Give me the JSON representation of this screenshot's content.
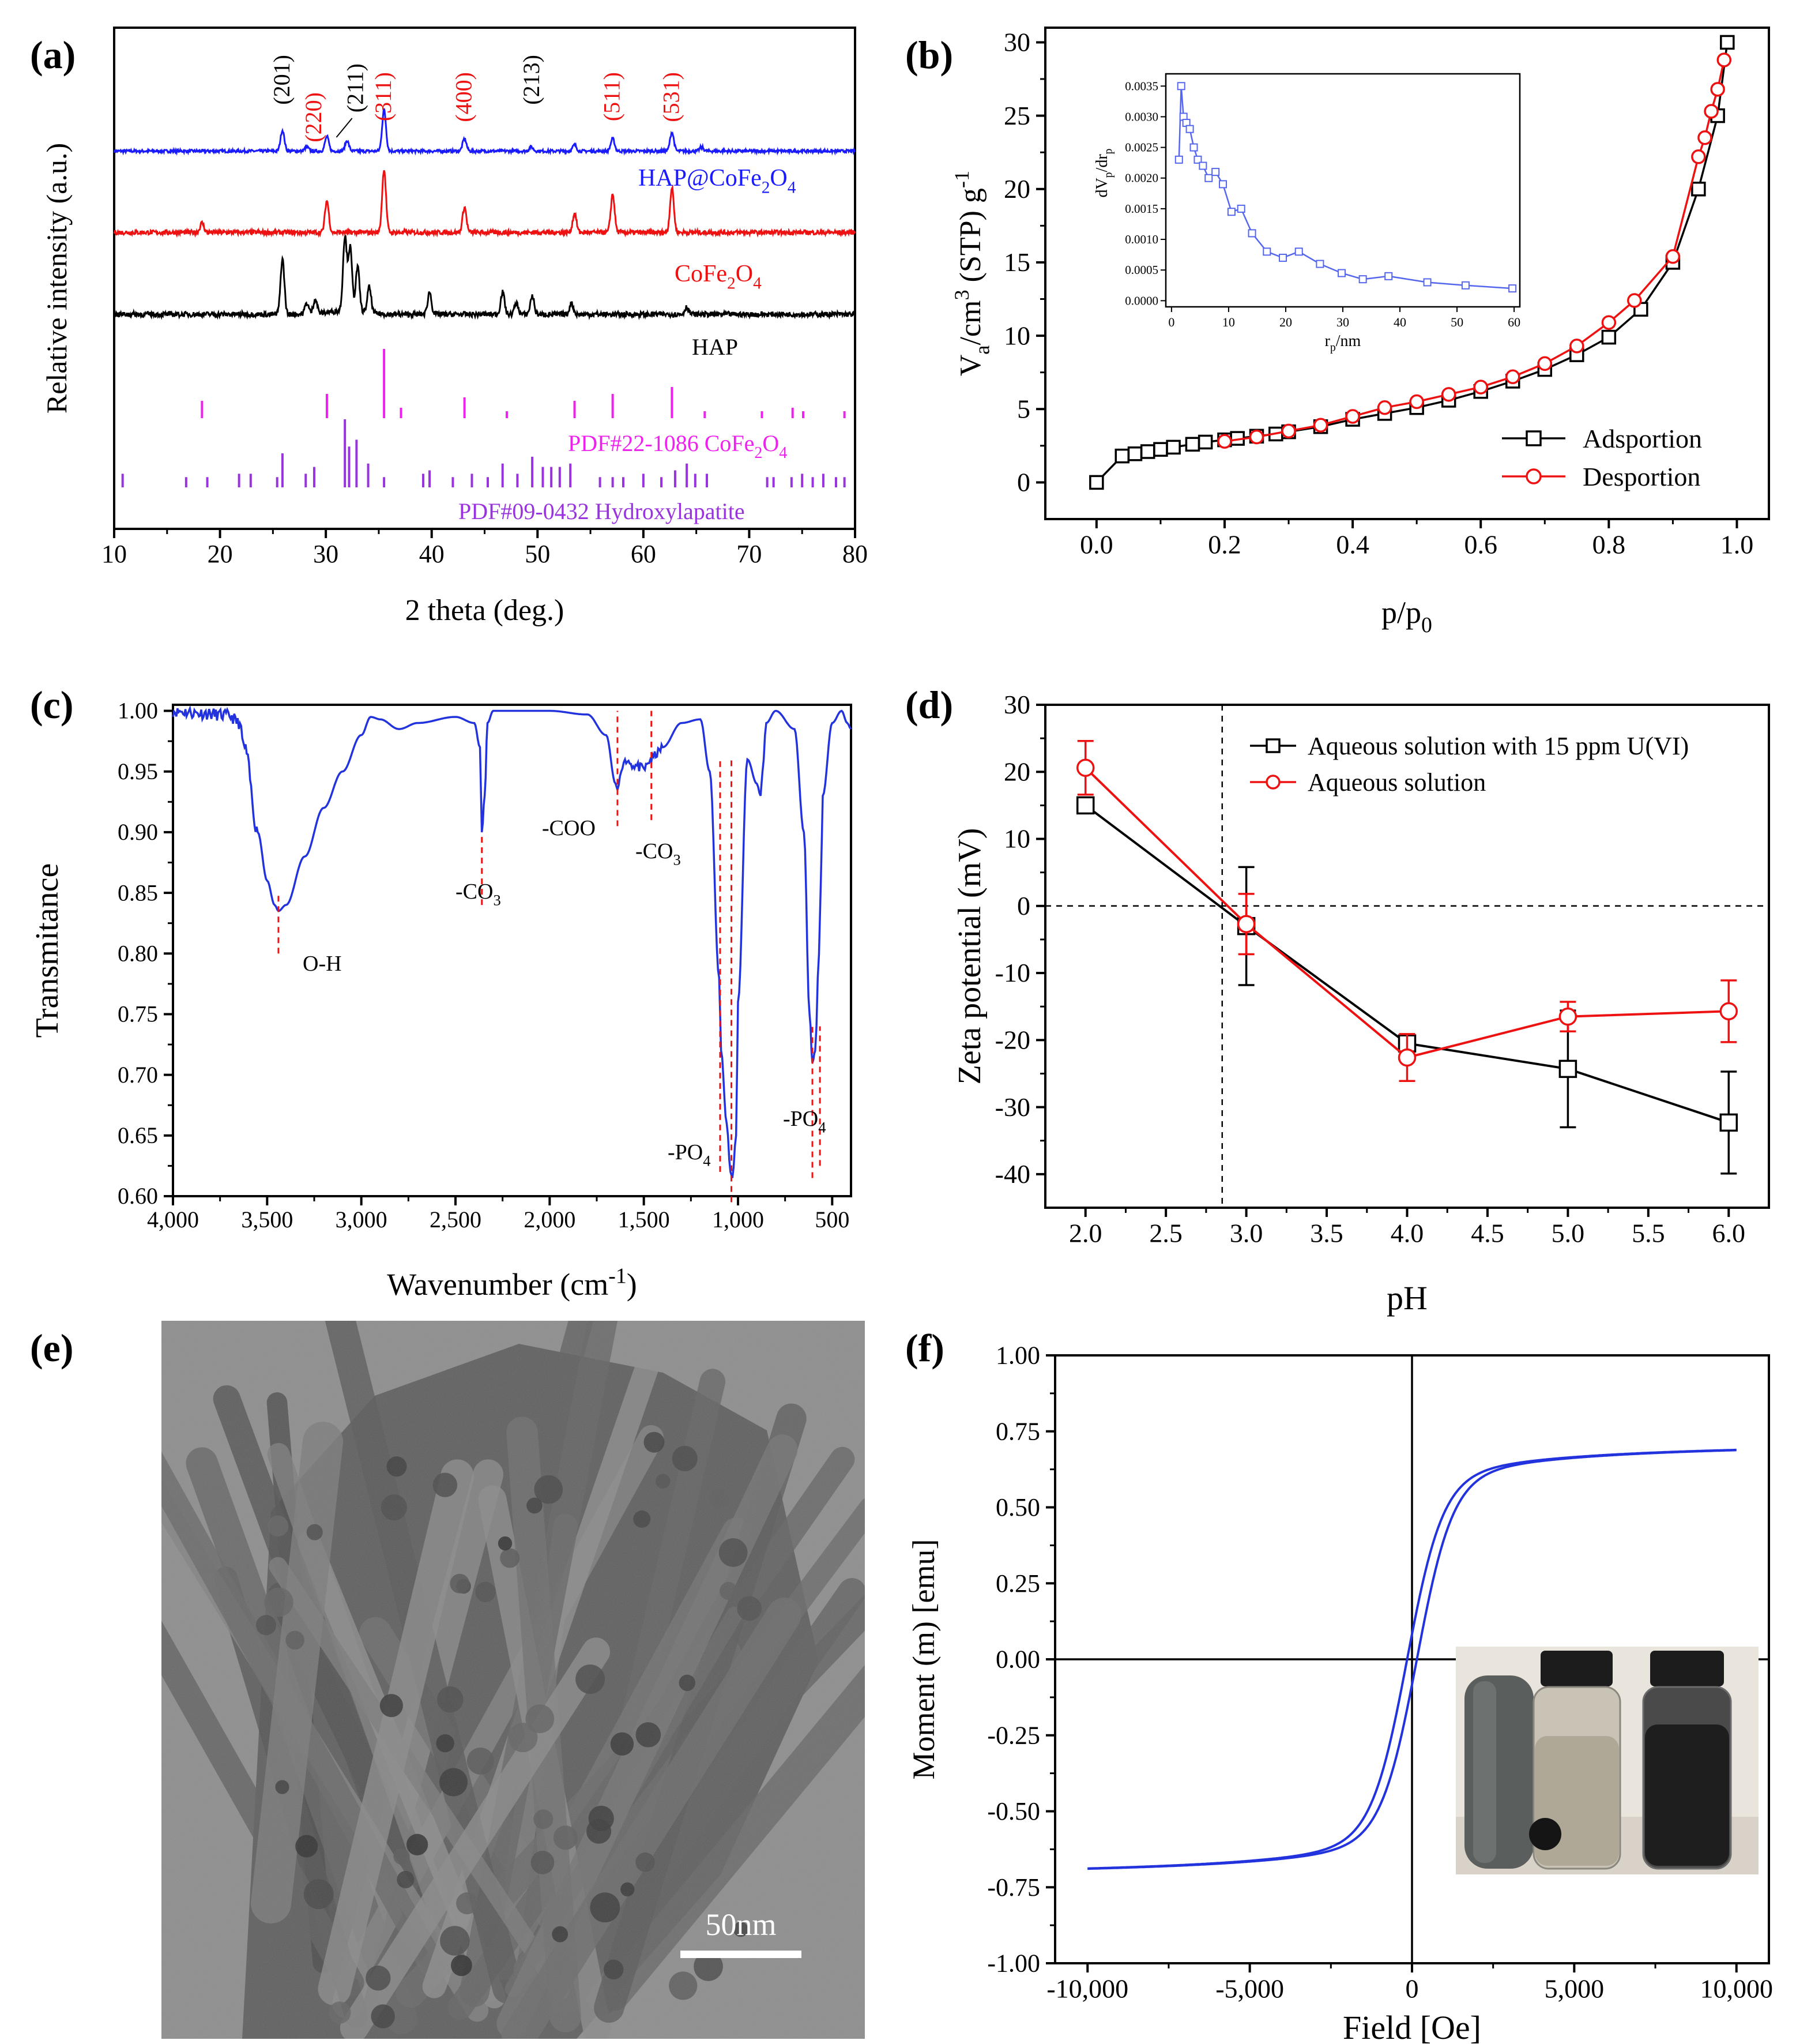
{
  "chart_data": [
    {
      "panel": "(a)",
      "type": "line",
      "xlabel": "2 theta (deg.)",
      "ylabel": "Relative intensity (a.u.)",
      "xlim": [
        10,
        80
      ],
      "xticks": [
        10,
        20,
        30,
        40,
        50,
        60,
        70,
        80
      ],
      "series": [
        {
          "name": "HAP@CoFe2O4",
          "color": "#1a1aff",
          "peaks": [
            [
              25.9,
              0.5
            ],
            [
              28.2,
              0.1
            ],
            [
              30.1,
              0.35
            ],
            [
              32.0,
              0.25
            ],
            [
              35.5,
              1.0
            ],
            [
              43.1,
              0.3
            ],
            [
              49.4,
              0.1
            ],
            [
              53.5,
              0.15
            ],
            [
              57.1,
              0.3
            ],
            [
              62.7,
              0.45
            ],
            [
              65.5,
              0.1
            ]
          ]
        },
        {
          "name": "CoFe2O4",
          "color": "#ee1111",
          "peaks": [
            [
              18.3,
              0.15
            ],
            [
              30.1,
              0.5
            ],
            [
              35.5,
              1.0
            ],
            [
              43.1,
              0.4
            ],
            [
              53.5,
              0.3
            ],
            [
              57.1,
              0.6
            ],
            [
              62.7,
              0.7
            ]
          ]
        },
        {
          "name": "HAP",
          "color": "#000000",
          "peaks": [
            [
              25.9,
              0.75
            ],
            [
              28.2,
              0.15
            ],
            [
              29.0,
              0.2
            ],
            [
              31.8,
              1.0
            ],
            [
              32.3,
              0.85
            ],
            [
              33.0,
              0.6
            ],
            [
              34.1,
              0.35
            ],
            [
              39.8,
              0.3
            ],
            [
              46.7,
              0.3
            ],
            [
              48.0,
              0.15
            ],
            [
              49.5,
              0.25
            ],
            [
              53.2,
              0.15
            ],
            [
              64.1,
              0.1
            ]
          ]
        }
      ],
      "reference_patterns": [
        {
          "name": "PDF#22-1086 CoFe2O4",
          "color": "#ee22ee",
          "sticks": [
            [
              18.3,
              0.25
            ],
            [
              30.1,
              0.35
            ],
            [
              35.5,
              1.0
            ],
            [
              37.1,
              0.15
            ],
            [
              43.1,
              0.3
            ],
            [
              47.1,
              0.1
            ],
            [
              53.5,
              0.25
            ],
            [
              57.1,
              0.35
            ],
            [
              62.7,
              0.45
            ],
            [
              65.8,
              0.1
            ],
            [
              71.2,
              0.1
            ],
            [
              74.1,
              0.15
            ],
            [
              75.1,
              0.1
            ],
            [
              79.0,
              0.1
            ]
          ]
        },
        {
          "name": "PDF#09-0432 Hydroxylapatite",
          "color": "#9933dd",
          "sticks": [
            [
              10.8,
              0.2
            ],
            [
              16.8,
              0.15
            ],
            [
              18.8,
              0.15
            ],
            [
              21.8,
              0.2
            ],
            [
              22.9,
              0.2
            ],
            [
              25.4,
              0.15
            ],
            [
              25.9,
              0.5
            ],
            [
              28.1,
              0.2
            ],
            [
              28.9,
              0.3
            ],
            [
              31.8,
              1.0
            ],
            [
              32.2,
              0.6
            ],
            [
              32.9,
              0.7
            ],
            [
              34.0,
              0.35
            ],
            [
              35.5,
              0.15
            ],
            [
              39.2,
              0.2
            ],
            [
              39.8,
              0.25
            ],
            [
              42.0,
              0.15
            ],
            [
              43.8,
              0.2
            ],
            [
              45.3,
              0.15
            ],
            [
              46.7,
              0.35
            ],
            [
              48.1,
              0.2
            ],
            [
              49.5,
              0.45
            ],
            [
              50.5,
              0.3
            ],
            [
              51.3,
              0.3
            ],
            [
              52.1,
              0.3
            ],
            [
              53.1,
              0.35
            ],
            [
              55.9,
              0.15
            ],
            [
              57.1,
              0.15
            ],
            [
              58.1,
              0.15
            ],
            [
              60.0,
              0.2
            ],
            [
              61.7,
              0.15
            ],
            [
              63.0,
              0.25
            ],
            [
              64.1,
              0.35
            ],
            [
              64.9,
              0.2
            ],
            [
              66.0,
              0.2
            ],
            [
              71.7,
              0.15
            ],
            [
              72.3,
              0.15
            ],
            [
              74.0,
              0.15
            ],
            [
              75.0,
              0.2
            ],
            [
              76.0,
              0.15
            ],
            [
              77.0,
              0.2
            ],
            [
              78.2,
              0.15
            ],
            [
              79.0,
              0.15
            ]
          ]
        }
      ],
      "peak_labels": [
        {
          "text": "(201)",
          "x": 25.9,
          "color": "#000000"
        },
        {
          "text": "(220)",
          "x": 28.9,
          "color": "#ee1111"
        },
        {
          "text": "(211)",
          "x": 31.5,
          "color": "#000000"
        },
        {
          "text": "(311)",
          "x": 35.5,
          "color": "#ee1111"
        },
        {
          "text": "(400)",
          "x": 43.1,
          "color": "#ee1111"
        },
        {
          "text": "(213)",
          "x": 49.5,
          "color": "#000000"
        },
        {
          "text": "(511)",
          "x": 57.1,
          "color": "#ee1111"
        },
        {
          "text": "(531)",
          "x": 62.7,
          "color": "#ee1111"
        }
      ],
      "labels": {
        "hap_cofe2o4": "HAP@CoFe2O4",
        "cofe2o4": "CoFe2O4",
        "hap": "HAP",
        "pdf_cofe2o4": "PDF#22-1086 CoFe2O4",
        "pdf_hap": "PDF#09-0432 Hydroxylapatite"
      }
    },
    {
      "panel": "(b)",
      "type": "line",
      "ylabel": "Va/cm3 (STP) g-1",
      "xlabel": "p/p0",
      "xlim": [
        -0.08,
        1.05
      ],
      "ylim": [
        -2.5,
        31
      ],
      "xticks": [
        0.0,
        0.2,
        0.4,
        0.6,
        0.8,
        1.0
      ],
      "yticks": [
        0,
        5,
        10,
        15,
        20,
        25,
        30
      ],
      "legend_position": "bottom-right",
      "series": [
        {
          "name": "Adsportion",
          "color": "#000000",
          "marker": "square",
          "x": [
            0.0,
            0.04,
            0.06,
            0.08,
            0.1,
            0.12,
            0.15,
            0.17,
            0.2,
            0.22,
            0.25,
            0.28,
            0.3,
            0.35,
            0.4,
            0.45,
            0.5,
            0.55,
            0.6,
            0.65,
            0.7,
            0.75,
            0.8,
            0.85,
            0.9,
            0.94,
            0.97,
            0.985
          ],
          "y": [
            0.0,
            1.8,
            1.95,
            2.1,
            2.25,
            2.4,
            2.6,
            2.75,
            2.9,
            3.0,
            3.15,
            3.3,
            3.45,
            3.8,
            4.3,
            4.7,
            5.1,
            5.6,
            6.2,
            6.9,
            7.7,
            8.7,
            9.9,
            11.8,
            15.0,
            20.0,
            25.0,
            30.0
          ]
        },
        {
          "name": "Desportion",
          "color": "#ee1111",
          "marker": "circle",
          "x": [
            0.2,
            0.25,
            0.3,
            0.35,
            0.4,
            0.45,
            0.5,
            0.55,
            0.6,
            0.65,
            0.7,
            0.75,
            0.8,
            0.84,
            0.9,
            0.94,
            0.95,
            0.96,
            0.97,
            0.98
          ],
          "y": [
            2.8,
            3.1,
            3.5,
            3.9,
            4.5,
            5.1,
            5.5,
            6.0,
            6.5,
            7.2,
            8.1,
            9.3,
            10.9,
            12.4,
            15.4,
            22.2,
            23.5,
            25.3,
            26.8,
            28.8
          ]
        }
      ],
      "inset": {
        "type": "line",
        "xlabel": "rp/nm",
        "ylabel": "dVp/drp",
        "xlim": [
          -1,
          61
        ],
        "ylim": [
          -0.0001,
          0.0037
        ],
        "xticks": [
          0,
          10,
          20,
          30,
          40,
          50,
          60
        ],
        "yticks": [
          0.0,
          0.0005,
          0.001,
          0.0015,
          0.002,
          0.0025,
          0.003,
          0.0035
        ],
        "ytick_labels": [
          "0.0000",
          "0.0005",
          "0.0010",
          "0.0015",
          "0.0020",
          "0.0025",
          "0.0030",
          "0.0035"
        ],
        "color": "#5566ee",
        "x": [
          1.3,
          1.7,
          2.1,
          2.6,
          3.2,
          3.9,
          4.6,
          5.5,
          6.5,
          7.7,
          9.0,
          10.5,
          12.2,
          14.1,
          16.7,
          19.5,
          22.3,
          26.0,
          29.8,
          33.5,
          38.0,
          44.8,
          51.5,
          59.7
        ],
        "y": [
          0.0023,
          0.0035,
          0.003,
          0.0029,
          0.0028,
          0.0025,
          0.0023,
          0.0022,
          0.002,
          0.0021,
          0.0019,
          0.00145,
          0.0015,
          0.0011,
          0.0008,
          0.0007,
          0.0008,
          0.0006,
          0.00045,
          0.00035,
          0.0004,
          0.0003,
          0.00025,
          0.0002
        ]
      },
      "labels": {
        "adsorption": "Adsportion",
        "desorption": "Desportion"
      }
    },
    {
      "panel": "(c)",
      "type": "line",
      "xlabel": "Wavenumber (cm-1)",
      "ylabel": "Transmitance",
      "xlim": [
        4000,
        400
      ],
      "ylim": [
        0.6,
        1.005
      ],
      "xticks": [
        4000,
        3500,
        3000,
        2500,
        2000,
        1500,
        1000,
        500
      ],
      "xtick_labels": [
        "4,000",
        "3,500",
        "3,000",
        "2,500",
        "2,000",
        "1,500",
        "1,000",
        "500"
      ],
      "yticks": [
        0.6,
        0.65,
        0.7,
        0.75,
        0.8,
        0.85,
        0.9,
        0.95,
        1.0
      ],
      "ytick_labels": [
        "0.60",
        "0.65",
        "0.70",
        "0.75",
        "0.80",
        "0.85",
        "0.90",
        "0.95",
        "1.00"
      ],
      "color": "#2233dd",
      "x": [
        4000,
        3850,
        3700,
        3650,
        3620,
        3550,
        3500,
        3460,
        3440,
        3400,
        3300,
        3200,
        3100,
        3000,
        2950,
        2900,
        2800,
        2700,
        2500,
        2400,
        2370,
        2360,
        2345,
        2330,
        2300,
        2200,
        2000,
        1800,
        1700,
        1650,
        1640,
        1620,
        1600,
        1550,
        1500,
        1460,
        1430,
        1400,
        1300,
        1200,
        1150,
        1100,
        1090,
        1060,
        1040,
        1030,
        1010,
        1000,
        950,
        900,
        880,
        870,
        850,
        800,
        700,
        650,
        620,
        605,
        590,
        570,
        560,
        550,
        500,
        450,
        420,
        400
      ],
      "y": [
        1.0,
        0.998,
        0.996,
        0.99,
        0.97,
        0.9,
        0.86,
        0.84,
        0.835,
        0.84,
        0.88,
        0.92,
        0.95,
        0.98,
        0.995,
        0.993,
        0.985,
        0.99,
        0.995,
        0.99,
        0.97,
        0.9,
        0.93,
        0.99,
        1.0,
        1.0,
        1.0,
        0.997,
        0.98,
        0.94,
        0.935,
        0.95,
        0.96,
        0.955,
        0.952,
        0.96,
        0.965,
        0.97,
        0.99,
        0.993,
        0.95,
        0.78,
        0.72,
        0.66,
        0.62,
        0.615,
        0.65,
        0.76,
        0.96,
        0.94,
        0.93,
        0.95,
        0.99,
        1.0,
        0.985,
        0.9,
        0.75,
        0.71,
        0.72,
        0.8,
        0.86,
        0.93,
        0.99,
        1.0,
        0.99,
        0.985
      ],
      "reference_lines": [
        3440,
        2360,
        1640,
        1460,
        1095,
        1035,
        605,
        565
      ],
      "annotations": [
        {
          "id": "oh",
          "text": "O-H"
        },
        {
          "id": "co3_1",
          "text": "-CO3"
        },
        {
          "id": "coo",
          "text": "-COO"
        },
        {
          "id": "co3_2",
          "text": "-CO3"
        },
        {
          "id": "po4_1",
          "text": "-PO4"
        },
        {
          "id": "po4_2",
          "text": "-PO4"
        }
      ]
    },
    {
      "panel": "(d)",
      "type": "line",
      "xlabel": "pH",
      "ylabel": "Zeta potential (mV)",
      "xlim": [
        1.75,
        6.25
      ],
      "ylim": [
        -45,
        30
      ],
      "xticks": [
        2.0,
        2.5,
        3.0,
        3.5,
        4.0,
        4.5,
        5.0,
        5.5,
        6.0
      ],
      "yticks": [
        -40,
        -30,
        -20,
        -10,
        0,
        10,
        20,
        30
      ],
      "isoelectric_point": 2.85,
      "legend_position": "top-right",
      "series": [
        {
          "name": "Aqueous solution with 15 ppm U(VI)",
          "color": "#000000",
          "marker": "square",
          "x": [
            2.0,
            3.0,
            4.0,
            5.0,
            6.0
          ],
          "y": [
            15.0,
            -3.0,
            -20.5,
            -24.3,
            -32.3
          ],
          "err": [
            0.8,
            8.8,
            1.0,
            8.7,
            7.6
          ]
        },
        {
          "name": "Aqueous solution",
          "color": "#ee1111",
          "marker": "circle",
          "x": [
            2.0,
            3.0,
            4.0,
            5.0,
            6.0
          ],
          "y": [
            20.6,
            -2.7,
            -22.6,
            -16.5,
            -15.7
          ],
          "err": [
            4.0,
            4.5,
            3.5,
            2.2,
            4.6
          ]
        }
      ]
    },
    {
      "panel": "(f)",
      "type": "line",
      "xlabel": "Field [Oe]",
      "ylabel": "Moment (m) [emu]",
      "xlim": [
        -11000,
        11000
      ],
      "ylim": [
        -1.0,
        1.0
      ],
      "xticks": [
        -10000,
        -5000,
        0,
        5000,
        10000
      ],
      "xtick_labels": [
        "-10,000",
        "-5,000",
        "0",
        "5,000",
        "10,000"
      ],
      "yticks": [
        -1.0,
        -0.75,
        -0.5,
        -0.25,
        0.0,
        0.25,
        0.5,
        0.75,
        1.0
      ],
      "ytick_labels": [
        "-1.00",
        "-0.75",
        "-0.50",
        "-0.25",
        "0.00",
        "0.25",
        "0.50",
        "0.75",
        "1.00"
      ],
      "color": "#2233dd",
      "saturation": 0.72,
      "coercivity": 150,
      "field_range": [
        -10000,
        10000
      ]
    }
  ],
  "figure": {
    "panel_labels": [
      "(a)",
      "(b)",
      "(c)",
      "(d)",
      "(e)",
      "(f)"
    ],
    "tem": {
      "scale_bar": "50nm"
    }
  },
  "colors": {
    "blue": "#2233dd",
    "red": "#ee1111",
    "black": "#000000",
    "magenta": "#ee22ee",
    "purple": "#9933dd"
  }
}
